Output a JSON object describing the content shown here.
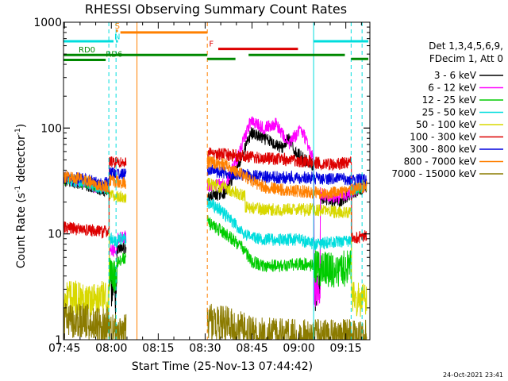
{
  "chart_data": {
    "type": "line",
    "title": "RHESSI Observing Summary Count Rates",
    "xlabel": "Start Time (25-Nov-13 07:44:42)",
    "ylabel": "Count Rate (s",
    "ylabel_sup": "-1",
    "ylabel_tail": " detector",
    "ylabel_close": ")",
    "yscale": "log",
    "xlim_minutes": [
      0,
      98
    ],
    "ylim": [
      1,
      1000
    ],
    "x_ticks": [
      {
        "label": "07:45",
        "minute": 0.3
      },
      {
        "label": "08:00",
        "minute": 15.3
      },
      {
        "label": "08:15",
        "minute": 30.3
      },
      {
        "label": "08:30",
        "minute": 45.3
      },
      {
        "label": "08:45",
        "minute": 60.3
      },
      {
        "label": "09:00",
        "minute": 75.3
      },
      {
        "label": "09:15",
        "minute": 90.3
      }
    ],
    "y_ticks": [
      {
        "label": "1",
        "value": 1
      },
      {
        "label": "10",
        "value": 10
      },
      {
        "label": "100",
        "value": 100
      },
      {
        "label": "1000",
        "value": 1000
      }
    ],
    "legend_header": [
      "Det 1,3,4,5,6,9,",
      "FDecim 1, Att 0"
    ],
    "timestamp": "24-Oct-2021 23:41",
    "gap": [
      23.5,
      46.0
    ],
    "series": [
      {
        "name": "3 - 6 keV",
        "color": "#000000",
        "pre": [
          [
            0,
            32
          ],
          [
            6,
            30
          ],
          [
            12,
            26
          ],
          [
            14.5,
            26
          ],
          [
            14.6,
            3
          ],
          [
            17,
            2.5
          ],
          [
            17.1,
            7
          ],
          [
            20,
            7.5
          ]
        ],
        "post": [
          [
            46,
            22
          ],
          [
            52,
            25
          ],
          [
            56,
            45
          ],
          [
            60,
            90
          ],
          [
            66,
            75
          ],
          [
            70,
            65
          ],
          [
            72,
            80
          ],
          [
            74,
            60
          ],
          [
            78,
            48
          ],
          [
            80,
            45
          ],
          [
            80.1,
            2.5
          ],
          [
            82,
            3
          ],
          [
            82.1,
            22
          ],
          [
            88,
            20
          ],
          [
            92,
            24
          ],
          [
            97,
            28
          ]
        ]
      },
      {
        "name": "6 - 12 keV",
        "color": "#ff00ff",
        "pre": [
          [
            0,
            33
          ],
          [
            6,
            31
          ],
          [
            12,
            27
          ],
          [
            14.5,
            27
          ],
          [
            14.6,
            7
          ],
          [
            17,
            7
          ],
          [
            17.1,
            9
          ],
          [
            20,
            9.5
          ]
        ],
        "post": [
          [
            46,
            28
          ],
          [
            52,
            30
          ],
          [
            56,
            55
          ],
          [
            60,
            120
          ],
          [
            64,
            100
          ],
          [
            68,
            110
          ],
          [
            72,
            70
          ],
          [
            76,
            100
          ],
          [
            80,
            50
          ],
          [
            80.1,
            3
          ],
          [
            82,
            3
          ],
          [
            82.1,
            24
          ],
          [
            88,
            22
          ],
          [
            92,
            25
          ],
          [
            97,
            29
          ]
        ]
      },
      {
        "name": "12 - 25 keV",
        "color": "#00cc00",
        "pre": [
          [
            0,
            33
          ],
          [
            6,
            31
          ],
          [
            12,
            27
          ],
          [
            14.5,
            27
          ],
          [
            14.6,
            4
          ],
          [
            17,
            4
          ],
          [
            17.1,
            5.5
          ],
          [
            20,
            6
          ]
        ],
        "post": [
          [
            46,
            13
          ],
          [
            52,
            10
          ],
          [
            56,
            8
          ],
          [
            58,
            7
          ],
          [
            60,
            5.5
          ],
          [
            64,
            5
          ],
          [
            70,
            5
          ],
          [
            76,
            5.2
          ],
          [
            80,
            5
          ],
          [
            82,
            4.8
          ],
          [
            88,
            4.5
          ],
          [
            92,
            5
          ],
          [
            92.1,
            26
          ],
          [
            97,
            29
          ]
        ]
      },
      {
        "name": "25 - 50 keV",
        "color": "#00dddd",
        "pre": [
          [
            0,
            33
          ],
          [
            6,
            31
          ],
          [
            12,
            27
          ],
          [
            14.5,
            27
          ],
          [
            14.6,
            9
          ],
          [
            17,
            8.5
          ],
          [
            17.1,
            9
          ],
          [
            20,
            9
          ]
        ],
        "post": [
          [
            46,
            20
          ],
          [
            50,
            17
          ],
          [
            54,
            13
          ],
          [
            58,
            10
          ],
          [
            62,
            9
          ],
          [
            68,
            8.8
          ],
          [
            76,
            8.8
          ],
          [
            80,
            8
          ],
          [
            84,
            8.2
          ],
          [
            88,
            8.5
          ],
          [
            92,
            8.5
          ],
          [
            92.1,
            26
          ],
          [
            97,
            29
          ]
        ]
      },
      {
        "name": "50 - 100 keV",
        "color": "#d8d800",
        "pre": [
          [
            0,
            2.5
          ],
          [
            6,
            2.4
          ],
          [
            12,
            2.4
          ],
          [
            14.5,
            2.4
          ],
          [
            14.6,
            23
          ],
          [
            20,
            22
          ]
        ],
        "post": [
          [
            46,
            30
          ],
          [
            52,
            27
          ],
          [
            56,
            24
          ],
          [
            58,
            23
          ],
          [
            58.1,
            18
          ],
          [
            64,
            17
          ],
          [
            72,
            17
          ],
          [
            80,
            17
          ],
          [
            88,
            16
          ],
          [
            92,
            16
          ],
          [
            92.1,
            2.4
          ],
          [
            97,
            2.4
          ]
        ]
      },
      {
        "name": "100 - 300 keV",
        "color": "#dd0000",
        "pre": [
          [
            0,
            11.5
          ],
          [
            6,
            11
          ],
          [
            12,
            10.5
          ],
          [
            14.5,
            10.5
          ],
          [
            14.6,
            48
          ],
          [
            20,
            47
          ]
        ],
        "post": [
          [
            46,
            58
          ],
          [
            52,
            56
          ],
          [
            58,
            54
          ],
          [
            64,
            52
          ],
          [
            72,
            50
          ],
          [
            80,
            48
          ],
          [
            86,
            45
          ],
          [
            92,
            48
          ],
          [
            92.1,
            9
          ],
          [
            97,
            9.5
          ]
        ]
      },
      {
        "name": "300 - 800 keV",
        "color": "#0000dd",
        "pre": [
          [
            0,
            34
          ],
          [
            6,
            33
          ],
          [
            12,
            30
          ],
          [
            14.5,
            30
          ],
          [
            14.6,
            38
          ],
          [
            20,
            36
          ]
        ],
        "post": [
          [
            46,
            40
          ],
          [
            52,
            38
          ],
          [
            58,
            36
          ],
          [
            62,
            35
          ],
          [
            70,
            34
          ],
          [
            78,
            34
          ],
          [
            84,
            33
          ],
          [
            90,
            33
          ],
          [
            97,
            32
          ]
        ]
      },
      {
        "name": "800 - 7000 keV",
        "color": "#ff8000",
        "pre": [
          [
            0,
            35
          ],
          [
            6,
            33
          ],
          [
            12,
            28
          ],
          [
            14.5,
            28
          ],
          [
            14.6,
            32
          ],
          [
            20,
            30
          ]
        ],
        "post": [
          [
            46,
            48
          ],
          [
            52,
            45
          ],
          [
            56,
            38
          ],
          [
            60,
            32
          ],
          [
            64,
            28
          ],
          [
            70,
            26
          ],
          [
            78,
            25
          ],
          [
            84,
            24
          ],
          [
            90,
            25
          ],
          [
            97,
            29
          ]
        ]
      },
      {
        "name": "7000 - 15000 keV",
        "color": "#8b7b00",
        "pre": [
          [
            0,
            1.5
          ],
          [
            6,
            1.5
          ],
          [
            12,
            1.4
          ],
          [
            14.5,
            1.4
          ],
          [
            14.6,
            1.2
          ],
          [
            20,
            1.2
          ]
        ],
        "post": [
          [
            46,
            1.5
          ],
          [
            52,
            1.4
          ],
          [
            58,
            1.2
          ],
          [
            64,
            1.1
          ],
          [
            72,
            1.05
          ],
          [
            80,
            1.05
          ],
          [
            88,
            1.05
          ],
          [
            97,
            1.05
          ]
        ]
      }
    ],
    "state_bars": [
      {
        "label": "S",
        "color": "#ff8000",
        "x0": 16.8,
        "x1": 17.4,
        "y": 830,
        "label_x": 17.2,
        "label_y": 870
      },
      {
        "label": "N",
        "color": "#00dddd",
        "x0": 16.8,
        "x1": 17.4,
        "y": 660,
        "label_x": 17.2,
        "label_y": 690
      },
      {
        "label": "",
        "color": "#00dddd",
        "x0": 0,
        "x1": 16.0,
        "y": 660
      },
      {
        "label": "",
        "color": "#ff8000",
        "x0": 18.2,
        "x1": 46.0,
        "y": 800
      },
      {
        "label": "F",
        "color": "#dd0000",
        "x0": 49.5,
        "x1": 75.0,
        "y": 560,
        "label_x": 47.3,
        "label_y": 590
      },
      {
        "label": "",
        "color": "#00dddd",
        "x0": 80.0,
        "x1": 97.5,
        "y": 660
      },
      {
        "label": "RD0",
        "color": "#008800",
        "x0": 0,
        "x1": 46.0,
        "y": 490,
        "label_x": 7.5,
        "label_y": 520
      },
      {
        "label": "",
        "color": "#008800",
        "x0": 46.0,
        "x1": 55.0,
        "y": 450
      },
      {
        "label": "",
        "color": "#008800",
        "x0": 59.2,
        "x1": 90.0,
        "y": 490
      },
      {
        "label": "",
        "color": "#008800",
        "x0": 92.0,
        "x1": 97.5,
        "y": 450
      },
      {
        "label": "RD6",
        "color": "#008800",
        "x0": 0,
        "x1": 13.5,
        "y": 440,
        "label_x": 16.2,
        "label_y": 470
      }
    ],
    "markers": [
      {
        "color": "#00dddd",
        "dash": true,
        "x": 14.5
      },
      {
        "color": "#00dddd",
        "dash": true,
        "x": 16.8
      },
      {
        "color": "#ff8000",
        "dash": false,
        "x": 23.5
      },
      {
        "color": "#ff8000",
        "dash": true,
        "x": 46.0
      },
      {
        "color": "#00dddd",
        "dash": false,
        "x": 80.0
      },
      {
        "color": "#00dddd",
        "dash": true,
        "x": 92.0
      },
      {
        "color": "#00dddd",
        "dash": true,
        "x": 95.5
      }
    ]
  }
}
